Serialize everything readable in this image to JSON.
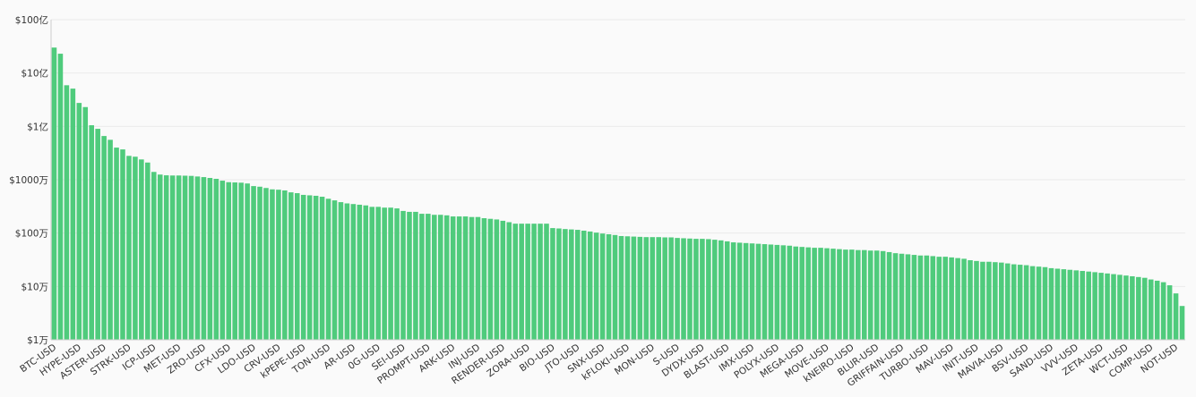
{
  "chart_data": {
    "type": "bar",
    "log_scale": true,
    "grid": true,
    "color": "#4fcb7c",
    "categories": [
      "BTC-USD",
      null,
      null,
      null,
      "HYPE-USD",
      null,
      null,
      null,
      "ASTER-USD",
      null,
      null,
      null,
      "STRK-USD",
      null,
      null,
      null,
      "ICP-USD",
      null,
      null,
      null,
      "MET-USD",
      null,
      null,
      null,
      "ZRO-USD",
      null,
      null,
      null,
      "CFX-USD",
      null,
      null,
      null,
      "LDO-USD",
      null,
      null,
      null,
      "CRV-USD",
      null,
      null,
      null,
      "kPEPE-USD",
      null,
      null,
      null,
      "TON-USD",
      null,
      null,
      null,
      "AR-USD",
      null,
      null,
      null,
      "0G-USD",
      null,
      null,
      null,
      "SEI-USD",
      null,
      null,
      null,
      "PROMPT-USD",
      null,
      null,
      null,
      "ARK-USD",
      null,
      null,
      null,
      "INJ-USD",
      null,
      null,
      null,
      "RENDER-USD",
      null,
      null,
      null,
      "ZORA-USD",
      null,
      null,
      null,
      "BIO-USD",
      null,
      null,
      null,
      "JTO-USD",
      null,
      null,
      null,
      "SNX-USD",
      null,
      null,
      null,
      "kFLOKI-USD",
      null,
      null,
      null,
      "MON-USD",
      null,
      null,
      null,
      "S-USD",
      null,
      null,
      null,
      "DYDX-USD",
      null,
      null,
      null,
      "BLAST-USD",
      null,
      null,
      null,
      "IMX-USD",
      null,
      null,
      null,
      "POLYX-USD",
      null,
      null,
      null,
      "MEGA-USD",
      null,
      null,
      null,
      "MOVE-USD",
      null,
      null,
      null,
      "kNEIRO-USD",
      null,
      null,
      null,
      "BLUR-USD",
      null,
      null,
      null,
      "GRIFFAIN-USD",
      null,
      null,
      null,
      "TURBO-USD",
      null,
      null,
      null,
      "MAV-USD",
      null,
      null,
      null,
      "INIT-USD",
      null,
      null,
      null,
      "MAVIA-USD",
      null,
      null,
      null,
      "BSV-USD",
      null,
      null,
      null,
      "SAND-USD",
      null,
      null,
      null,
      "VVV-USD",
      null,
      null,
      null,
      "ZETA-USD",
      null,
      null,
      null,
      "WCT-USD",
      null,
      null,
      null,
      "COMP-USD",
      null,
      null,
      null,
      "NOT-USD",
      null
    ],
    "values": [
      3000000000.0,
      2300000000.0,
      590000000.0,
      510000000.0,
      275000000.0,
      230000000.0,
      105000000.0,
      90000000.0,
      66000000.0,
      56000000.0,
      40000000.0,
      37000000.0,
      28000000.0,
      27000000.0,
      24000000.0,
      21000000.0,
      14000000.0,
      12500000.0,
      12100000.0,
      12000000.0,
      12000000.0,
      11900000.0,
      11800000.0,
      11500000.0,
      11200000.0,
      10800000.0,
      10400000.0,
      9600000.0,
      9000000.0,
      8900000.0,
      8800000.0,
      8500000.0,
      7600000.0,
      7400000.0,
      7000000.0,
      6600000.0,
      6500000.0,
      6300000.0,
      5800000.0,
      5600000.0,
      5200000.0,
      5100000.0,
      5000000.0,
      4800000.0,
      4400000.0,
      4100000.0,
      3800000.0,
      3600000.0,
      3500000.0,
      3400000.0,
      3300000.0,
      3100000.0,
      3100000.0,
      3000000.0,
      3000000.0,
      2900000.0,
      2600000.0,
      2500000.0,
      2500000.0,
      2300000.0,
      2300000.0,
      2200000.0,
      2200000.0,
      2150000.0,
      2050000.0,
      2050000.0,
      2050000.0,
      2000000.0,
      2000000.0,
      1900000.0,
      1850000.0,
      1800000.0,
      1700000.0,
      1600000.0,
      1500000.0,
      1500000.0,
      1500000.0,
      1500000.0,
      1500000.0,
      1500000.0,
      1240000.0,
      1220000.0,
      1190000.0,
      1170000.0,
      1150000.0,
      1110000.0,
      1070000.0,
      1020000.0,
      980000.0,
      950000.0,
      920000.0,
      880000.0,
      870000.0,
      860000.0,
      850000.0,
      840000.0,
      840000.0,
      840000.0,
      830000.0,
      830000.0,
      810000.0,
      800000.0,
      790000.0,
      780000.0,
      780000.0,
      770000.0,
      750000.0,
      730000.0,
      700000.0,
      670000.0,
      660000.0,
      650000.0,
      640000.0,
      630000.0,
      620000.0,
      610000.0,
      600000.0,
      590000.0,
      580000.0,
      560000.0,
      550000.0,
      540000.0,
      530000.0,
      530000.0,
      520000.0,
      510000.0,
      500000.0,
      490000.0,
      490000.0,
      480000.0,
      480000.0,
      470000.0,
      470000.0,
      460000.0,
      440000.0,
      420000.0,
      410000.0,
      400000.0,
      390000.0,
      380000.0,
      380000.0,
      370000.0,
      360000.0,
      360000.0,
      350000.0,
      340000.0,
      330000.0,
      310000.0,
      300000.0,
      290000.0,
      290000.0,
      285000.0,
      280000.0,
      270000.0,
      260000.0,
      255000.0,
      250000.0,
      240000.0,
      235000.0,
      230000.0,
      220000.0,
      215000.0,
      210000.0,
      205000.0,
      200000.0,
      195000.0,
      190000.0,
      185000.0,
      180000.0,
      175000.0,
      170000.0,
      165000.0,
      160000.0,
      155000.0,
      150000.0,
      145000.0,
      135000.0,
      128000.0,
      120000.0,
      105000.0,
      74000.0,
      43000.0
    ],
    "ylim": [
      10000,
      10000000000
    ],
    "yticks": [
      {
        "value": 10000,
        "label": "$1万"
      },
      {
        "value": 100000,
        "label": "$10万"
      },
      {
        "value": 1000000,
        "label": "$100万"
      },
      {
        "value": 10000000,
        "label": "$1000万"
      },
      {
        "value": 100000000,
        "label": "$1亿"
      },
      {
        "value": 1000000000,
        "label": "$10亿"
      },
      {
        "value": 10000000000,
        "label": "$100亿"
      }
    ]
  }
}
